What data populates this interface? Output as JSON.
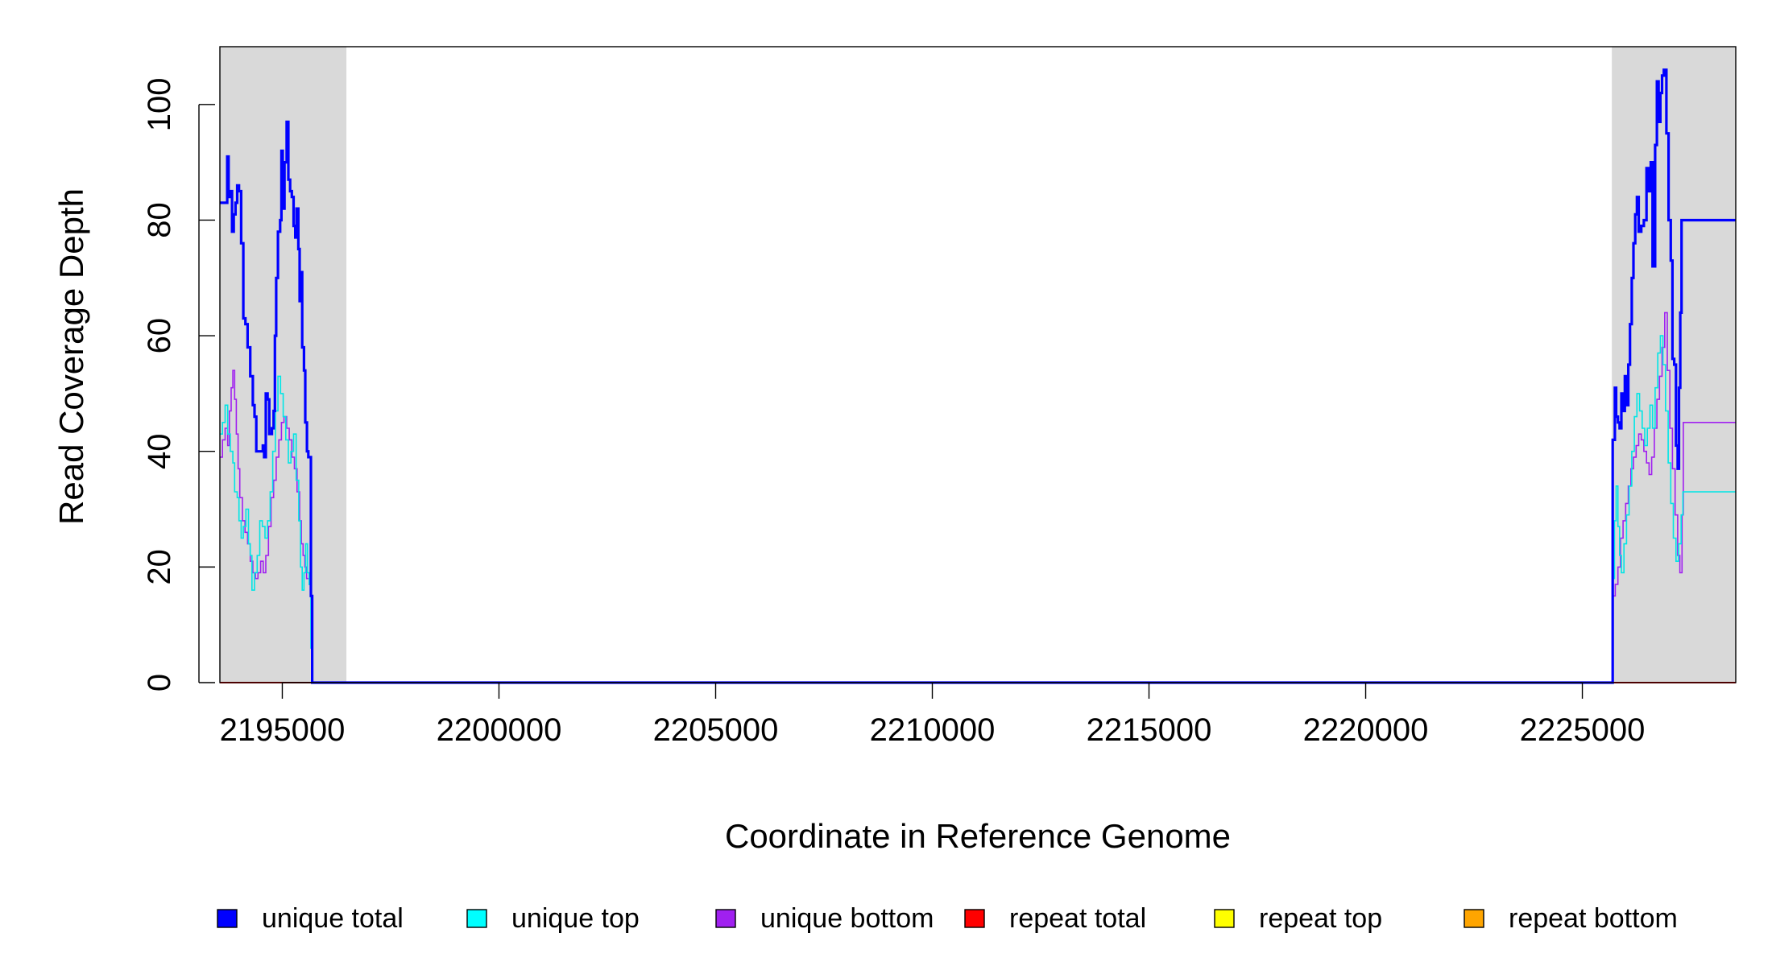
{
  "chart_data": {
    "type": "line",
    "title": "",
    "xlabel": "Coordinate in Reference Genome",
    "ylabel": "Read Coverage Depth",
    "xlim": [
      2193560,
      2228540
    ],
    "ylim": [
      0,
      110
    ],
    "x_ticks": [
      "2195000",
      "2200000",
      "2205000",
      "2210000",
      "2215000",
      "2220000",
      "2225000"
    ],
    "y_ticks": [
      "0",
      "20",
      "40",
      "60",
      "80",
      "100"
    ],
    "shaded_regions": [
      [
        2193560,
        2196480
      ],
      [
        2225680,
        2228540
      ]
    ],
    "grid": false,
    "legend_position": "bottom",
    "series": [
      {
        "name": "unique total",
        "color": "#0000ff",
        "points": [
          [
            2193560,
            83
          ],
          [
            2193700,
            83
          ],
          [
            2193730,
            91
          ],
          [
            2193760,
            84
          ],
          [
            2193800,
            85
          ],
          [
            2193840,
            78
          ],
          [
            2193880,
            81
          ],
          [
            2193920,
            83
          ],
          [
            2193960,
            86
          ],
          [
            2194000,
            85
          ],
          [
            2194050,
            76
          ],
          [
            2194100,
            63
          ],
          [
            2194150,
            62
          ],
          [
            2194200,
            58
          ],
          [
            2194260,
            53
          ],
          [
            2194320,
            48
          ],
          [
            2194360,
            46
          ],
          [
            2194400,
            40
          ],
          [
            2194500,
            40
          ],
          [
            2194550,
            41
          ],
          [
            2194580,
            39
          ],
          [
            2194620,
            50
          ],
          [
            2194660,
            49
          ],
          [
            2194700,
            43
          ],
          [
            2194760,
            44
          ],
          [
            2194800,
            47
          ],
          [
            2194830,
            60
          ],
          [
            2194860,
            70
          ],
          [
            2194900,
            78
          ],
          [
            2194950,
            80
          ],
          [
            2194980,
            92
          ],
          [
            2195010,
            82
          ],
          [
            2195050,
            90
          ],
          [
            2195100,
            97
          ],
          [
            2195140,
            87
          ],
          [
            2195180,
            85
          ],
          [
            2195220,
            84
          ],
          [
            2195260,
            79
          ],
          [
            2195300,
            77
          ],
          [
            2195330,
            82
          ],
          [
            2195370,
            75
          ],
          [
            2195400,
            66
          ],
          [
            2195430,
            71
          ],
          [
            2195460,
            58
          ],
          [
            2195500,
            54
          ],
          [
            2195530,
            45
          ],
          [
            2195570,
            40
          ],
          [
            2195600,
            39
          ],
          [
            2195640,
            39
          ],
          [
            2195660,
            15
          ],
          [
            2195690,
            0
          ],
          [
            2225680,
            0
          ],
          [
            2225700,
            42
          ],
          [
            2225750,
            51
          ],
          [
            2225780,
            46
          ],
          [
            2225820,
            45
          ],
          [
            2225860,
            44
          ],
          [
            2225900,
            50
          ],
          [
            2225940,
            47
          ],
          [
            2225980,
            53
          ],
          [
            2226020,
            48
          ],
          [
            2226060,
            55
          ],
          [
            2226100,
            62
          ],
          [
            2226140,
            70
          ],
          [
            2226180,
            76
          ],
          [
            2226220,
            81
          ],
          [
            2226260,
            84
          ],
          [
            2226300,
            78
          ],
          [
            2226360,
            79
          ],
          [
            2226420,
            80
          ],
          [
            2226480,
            89
          ],
          [
            2226530,
            85
          ],
          [
            2226580,
            90
          ],
          [
            2226620,
            72
          ],
          [
            2226680,
            93
          ],
          [
            2226720,
            104
          ],
          [
            2226760,
            97
          ],
          [
            2226800,
            102
          ],
          [
            2226840,
            105
          ],
          [
            2226880,
            106
          ],
          [
            2226940,
            95
          ],
          [
            2226990,
            80
          ],
          [
            2227040,
            73
          ],
          [
            2227080,
            56
          ],
          [
            2227120,
            55
          ],
          [
            2227160,
            41
          ],
          [
            2227200,
            37
          ],
          [
            2227230,
            51
          ],
          [
            2227260,
            64
          ],
          [
            2227290,
            80
          ],
          [
            2228540,
            80
          ]
        ]
      },
      {
        "name": "unique top",
        "color": "#00e5e5",
        "points": [
          [
            2193560,
            43
          ],
          [
            2193620,
            45
          ],
          [
            2193680,
            48
          ],
          [
            2193740,
            43
          ],
          [
            2193800,
            40
          ],
          [
            2193860,
            38
          ],
          [
            2193900,
            33
          ],
          [
            2193960,
            32
          ],
          [
            2194000,
            28
          ],
          [
            2194050,
            25
          ],
          [
            2194100,
            27
          ],
          [
            2194160,
            30
          ],
          [
            2194220,
            24
          ],
          [
            2194260,
            22
          ],
          [
            2194300,
            16
          ],
          [
            2194360,
            19
          ],
          [
            2194420,
            22
          ],
          [
            2194480,
            28
          ],
          [
            2194540,
            27
          ],
          [
            2194600,
            25
          ],
          [
            2194660,
            28
          ],
          [
            2194720,
            33
          ],
          [
            2194780,
            40
          ],
          [
            2194840,
            47
          ],
          [
            2194900,
            53
          ],
          [
            2194960,
            50
          ],
          [
            2195020,
            46
          ],
          [
            2195080,
            42
          ],
          [
            2195140,
            38
          ],
          [
            2195200,
            40
          ],
          [
            2195260,
            43
          ],
          [
            2195320,
            35
          ],
          [
            2195380,
            28
          ],
          [
            2195420,
            20
          ],
          [
            2195460,
            16
          ],
          [
            2195500,
            19
          ],
          [
            2195540,
            24
          ],
          [
            2195580,
            19
          ],
          [
            2195620,
            17
          ],
          [
            2195660,
            6
          ],
          [
            2195690,
            0
          ],
          [
            2225680,
            0
          ],
          [
            2225700,
            18
          ],
          [
            2225740,
            28
          ],
          [
            2225780,
            34
          ],
          [
            2225820,
            27
          ],
          [
            2225860,
            22
          ],
          [
            2225900,
            19
          ],
          [
            2225960,
            24
          ],
          [
            2226020,
            29
          ],
          [
            2226080,
            34
          ],
          [
            2226140,
            40
          ],
          [
            2226200,
            46
          ],
          [
            2226260,
            50
          ],
          [
            2226320,
            47
          ],
          [
            2226380,
            44
          ],
          [
            2226440,
            41
          ],
          [
            2226500,
            44
          ],
          [
            2226560,
            48
          ],
          [
            2226620,
            44
          ],
          [
            2226680,
            51
          ],
          [
            2226740,
            57
          ],
          [
            2226800,
            60
          ],
          [
            2226860,
            55
          ],
          [
            2226920,
            47
          ],
          [
            2226980,
            38
          ],
          [
            2227040,
            31
          ],
          [
            2227100,
            25
          ],
          [
            2227160,
            21
          ],
          [
            2227220,
            24
          ],
          [
            2227280,
            29
          ],
          [
            2227320,
            33
          ],
          [
            2228540,
            33
          ]
        ]
      },
      {
        "name": "unique bottom",
        "color": "#a020f0",
        "points": [
          [
            2193560,
            39
          ],
          [
            2193620,
            42
          ],
          [
            2193680,
            44
          ],
          [
            2193740,
            41
          ],
          [
            2193780,
            47
          ],
          [
            2193820,
            51
          ],
          [
            2193860,
            54
          ],
          [
            2193900,
            49
          ],
          [
            2193940,
            43
          ],
          [
            2193980,
            37
          ],
          [
            2194020,
            32
          ],
          [
            2194080,
            28
          ],
          [
            2194140,
            26
          ],
          [
            2194200,
            24
          ],
          [
            2194260,
            21
          ],
          [
            2194320,
            19
          ],
          [
            2194380,
            18
          ],
          [
            2194440,
            19
          ],
          [
            2194500,
            21
          ],
          [
            2194560,
            19
          ],
          [
            2194620,
            22
          ],
          [
            2194680,
            27
          ],
          [
            2194740,
            32
          ],
          [
            2194800,
            35
          ],
          [
            2194860,
            39
          ],
          [
            2194920,
            42
          ],
          [
            2194980,
            45
          ],
          [
            2195040,
            46
          ],
          [
            2195100,
            44
          ],
          [
            2195160,
            42
          ],
          [
            2195220,
            39
          ],
          [
            2195280,
            37
          ],
          [
            2195340,
            33
          ],
          [
            2195400,
            28
          ],
          [
            2195440,
            24
          ],
          [
            2195480,
            22
          ],
          [
            2195520,
            20
          ],
          [
            2195560,
            18
          ],
          [
            2195620,
            17
          ],
          [
            2195660,
            6
          ],
          [
            2195690,
            0
          ],
          [
            2225680,
            0
          ],
          [
            2225700,
            15
          ],
          [
            2225760,
            17
          ],
          [
            2225820,
            20
          ],
          [
            2225880,
            25
          ],
          [
            2225940,
            28
          ],
          [
            2226000,
            31
          ],
          [
            2226060,
            34
          ],
          [
            2226120,
            37
          ],
          [
            2226180,
            39
          ],
          [
            2226240,
            41
          ],
          [
            2226300,
            43
          ],
          [
            2226360,
            42
          ],
          [
            2226420,
            40
          ],
          [
            2226480,
            38
          ],
          [
            2226540,
            36
          ],
          [
            2226600,
            39
          ],
          [
            2226660,
            44
          ],
          [
            2226720,
            49
          ],
          [
            2226780,
            53
          ],
          [
            2226840,
            58
          ],
          [
            2226900,
            64
          ],
          [
            2226960,
            54
          ],
          [
            2227020,
            44
          ],
          [
            2227080,
            37
          ],
          [
            2227140,
            29
          ],
          [
            2227200,
            22
          ],
          [
            2227250,
            19
          ],
          [
            2227300,
            29
          ],
          [
            2227330,
            45
          ],
          [
            2228540,
            45
          ]
        ]
      },
      {
        "name": "repeat total",
        "color": "#ff0000",
        "points": [
          [
            2193560,
            0
          ],
          [
            2228540,
            0
          ]
        ]
      },
      {
        "name": "repeat top",
        "color": "#ffff00",
        "points": [
          [
            2193560,
            0
          ],
          [
            2228540,
            0
          ]
        ]
      },
      {
        "name": "repeat bottom",
        "color": "#ffa500",
        "points": [
          [
            2193560,
            0
          ],
          [
            2228540,
            0
          ]
        ]
      }
    ]
  },
  "legend": {
    "items": [
      {
        "label": "unique total",
        "color": "#0000ff"
      },
      {
        "label": "unique top",
        "color": "#00ffff"
      },
      {
        "label": "unique bottom",
        "color": "#a020f0"
      },
      {
        "label": "repeat total",
        "color": "#ff0000"
      },
      {
        "label": "repeat top",
        "color": "#ffff00"
      },
      {
        "label": "repeat bottom",
        "color": "#ffa500"
      }
    ]
  },
  "shade_color": "#d9d9d9"
}
